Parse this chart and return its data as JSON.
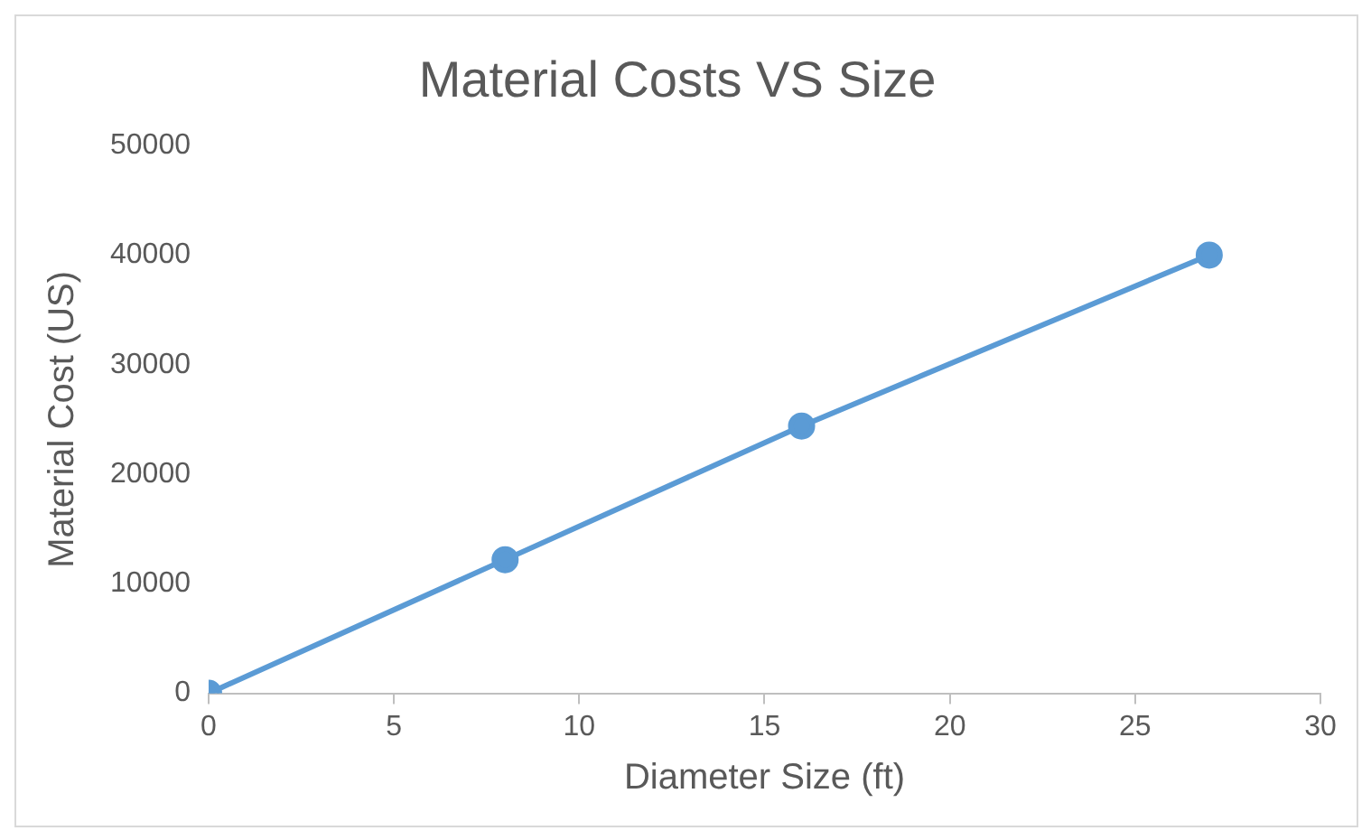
{
  "chart_data": {
    "type": "line",
    "title": "Material Costs VS Size",
    "xlabel": "Diameter Size (ft)",
    "ylabel": "Material Cost (US)",
    "x": [
      0,
      8,
      16,
      27
    ],
    "series": [
      {
        "color": "#5b9bd5",
        "values": [
          0,
          12200,
          24400,
          40000
        ]
      }
    ],
    "xlim": [
      0,
      30
    ],
    "xticks": [
      0,
      5,
      10,
      15,
      20,
      25,
      30
    ],
    "ylim": [
      0,
      50000
    ],
    "yticks": [
      0,
      10000,
      20000,
      30000,
      40000,
      50000
    ],
    "grid": false,
    "legend": false,
    "marker": "circle",
    "line_style": "solid"
  }
}
